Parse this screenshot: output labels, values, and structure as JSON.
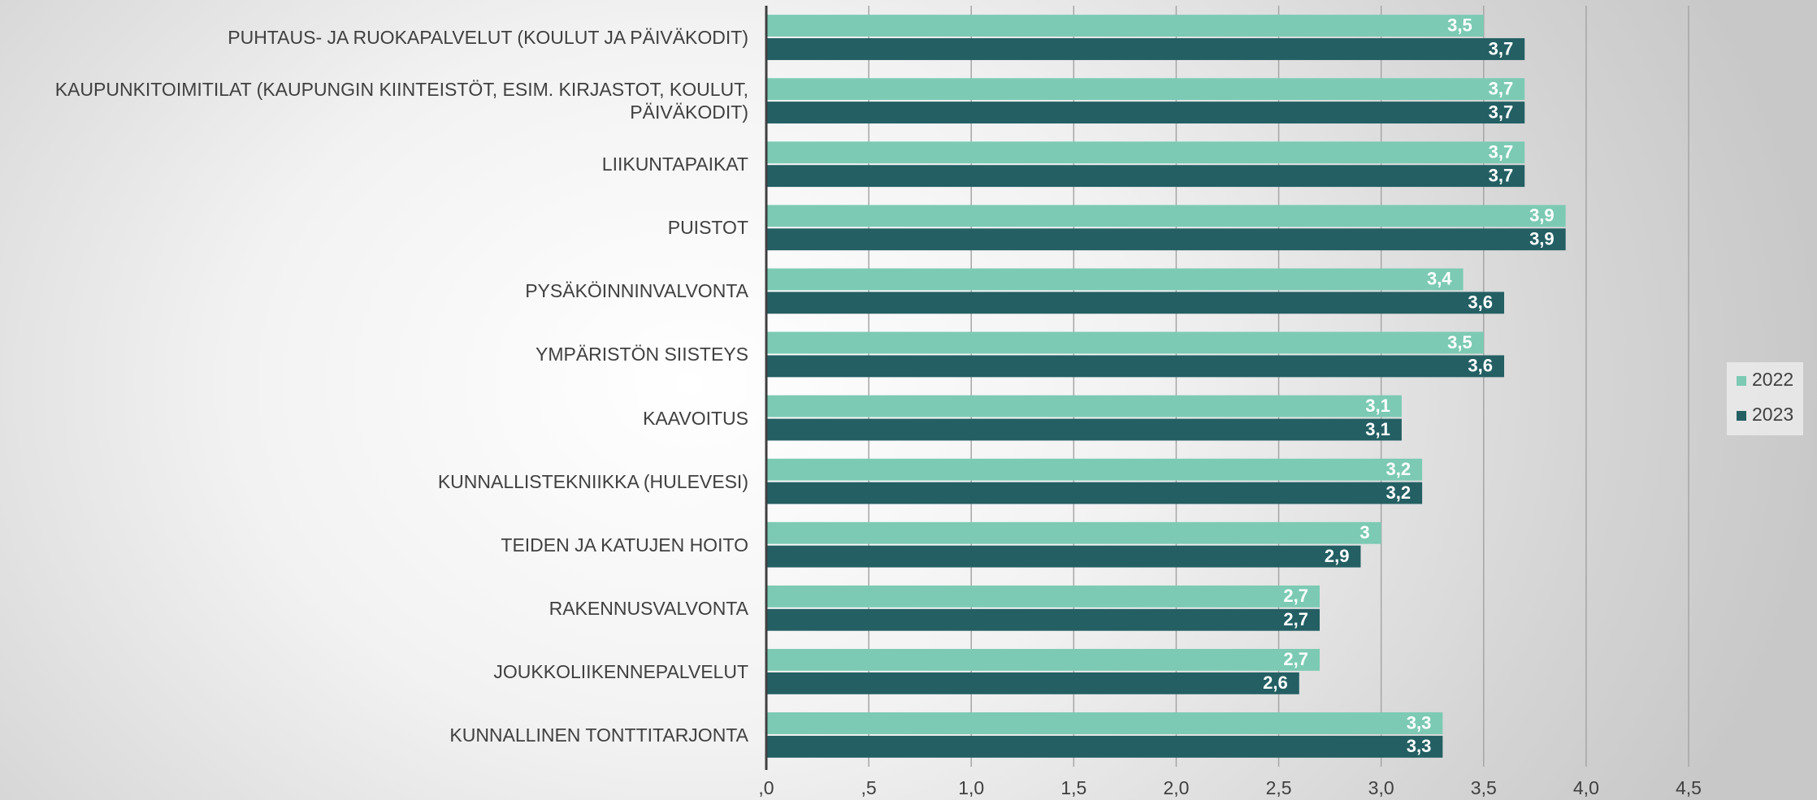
{
  "chart_data": {
    "type": "hbar",
    "categories": [
      "PUHTAUS- JA RUOKAPALVELUT (KOULUT JA PÄIVÄKODIT)",
      "KAUPUNKITOIMITILAT (KAUPUNGIN KIINTEISTÖT, ESIM. KIRJASTOT, KOULUT, PÄIVÄKODIT)",
      "LIIKUNTAPAIKAT",
      "PUISTOT",
      "PYSÄKÖINNINVALVONTA",
      "YMPÄRISTÖN SIISTEYS",
      "KAAVOITUS",
      "KUNNALLISTEKNIIKKA (HULEVESI)",
      "TEIDEN JA KATUJEN HOITO",
      "RAKENNUSVALVONTA",
      "JOUKKOLIIKENNEPALVELUT",
      "KUNNALLINEN TONTTITARJONTA"
    ],
    "series": [
      {
        "name": "2022",
        "color": "#7ccab4",
        "values": [
          3.5,
          3.7,
          3.7,
          3.9,
          3.4,
          3.5,
          3.1,
          3.2,
          3.0,
          2.7,
          2.7,
          3.3
        ],
        "value_labels": [
          "3,5",
          "3,7",
          "3,7",
          "3,9",
          "3,4",
          "3,5",
          "3,1",
          "3,2",
          "3",
          "2,7",
          "2,7",
          "3,3"
        ]
      },
      {
        "name": "2023",
        "color": "#235f63",
        "values": [
          3.7,
          3.7,
          3.7,
          3.9,
          3.6,
          3.6,
          3.1,
          3.2,
          2.9,
          2.7,
          2.6,
          3.3
        ],
        "value_labels": [
          "3,7",
          "3,7",
          "3,7",
          "3,9",
          "3,6",
          "3,6",
          "3,1",
          "3,2",
          "2,9",
          "2,7",
          "2,6",
          "3,3"
        ]
      }
    ],
    "xlim": [
      0,
      4.5
    ],
    "xticks": [
      {
        "value": 0,
        "label": ",0"
      },
      {
        "value": 0.5,
        "label": ",5"
      },
      {
        "value": 1,
        "label": "1,0"
      },
      {
        "value": 1.5,
        "label": "1,5"
      },
      {
        "value": 2,
        "label": "2,0"
      },
      {
        "value": 2.5,
        "label": "2,5"
      },
      {
        "value": 3,
        "label": "3,0"
      },
      {
        "value": 3.5,
        "label": "3,5"
      },
      {
        "value": 4,
        "label": "4,0"
      },
      {
        "value": 4.5,
        "label": "4,5"
      }
    ],
    "grid": true,
    "legend": "right"
  }
}
